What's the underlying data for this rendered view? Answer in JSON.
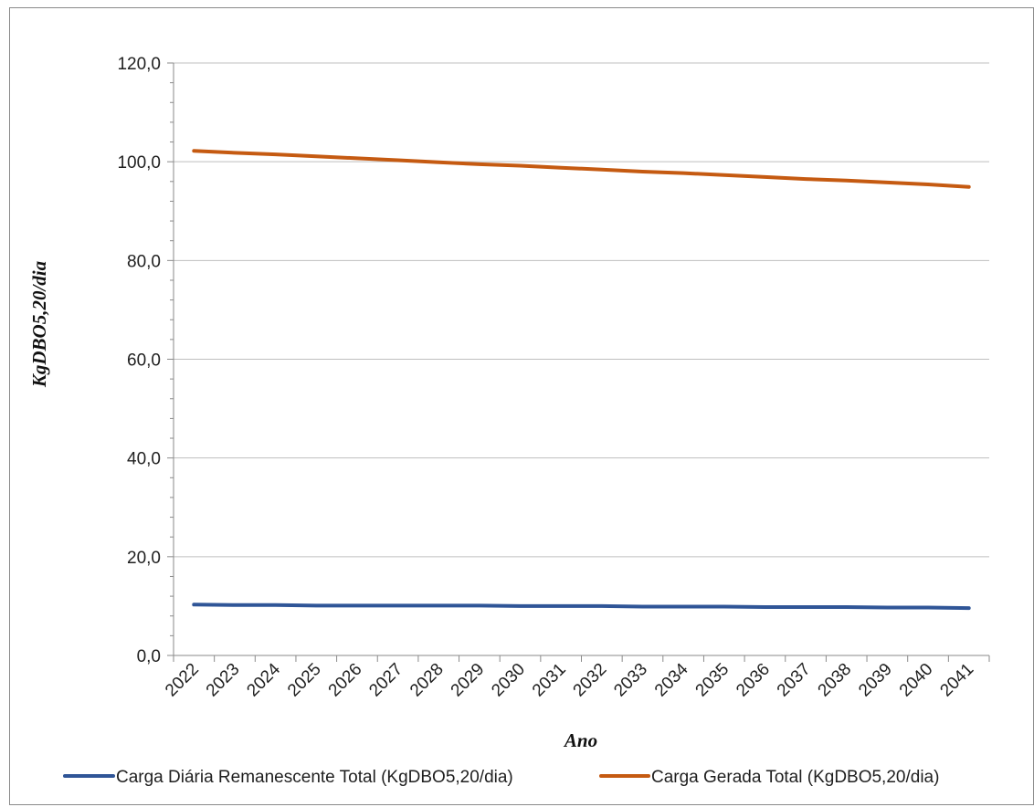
{
  "chart_data": {
    "type": "line",
    "title": "",
    "xlabel": "Ano",
    "ylabel": "KgDBO5,20/dia",
    "ylim": [
      0,
      120
    ],
    "y_tick_labels": [
      "0,0",
      "20,0",
      "40,0",
      "60,0",
      "80,0",
      "100,0",
      "120,0"
    ],
    "y_tick_values": [
      0,
      20,
      40,
      60,
      80,
      100,
      120
    ],
    "grid": true,
    "legend_position": "bottom",
    "categories": [
      "2022",
      "2023",
      "2024",
      "2025",
      "2026",
      "2027",
      "2028",
      "2029",
      "2030",
      "2031",
      "2032",
      "2033",
      "2034",
      "2035",
      "2036",
      "2037",
      "2038",
      "2039",
      "2040",
      "2041"
    ],
    "series": [
      {
        "name": "Carga Diária Remanescente Total (KgDBO5,20/dia)",
        "color": "#2f5597",
        "values": [
          10.3,
          10.2,
          10.2,
          10.1,
          10.1,
          10.1,
          10.1,
          10.1,
          10.0,
          10.0,
          10.0,
          9.9,
          9.9,
          9.9,
          9.8,
          9.8,
          9.8,
          9.7,
          9.7,
          9.6
        ]
      },
      {
        "name": "Carga Gerada Total (KgDBO5,20/dia)",
        "color": "#c55a11",
        "values": [
          102.2,
          101.8,
          101.5,
          101.1,
          100.7,
          100.3,
          99.9,
          99.5,
          99.2,
          98.8,
          98.4,
          98.0,
          97.7,
          97.3,
          96.9,
          96.5,
          96.2,
          95.8,
          95.4,
          94.9
        ]
      }
    ]
  }
}
